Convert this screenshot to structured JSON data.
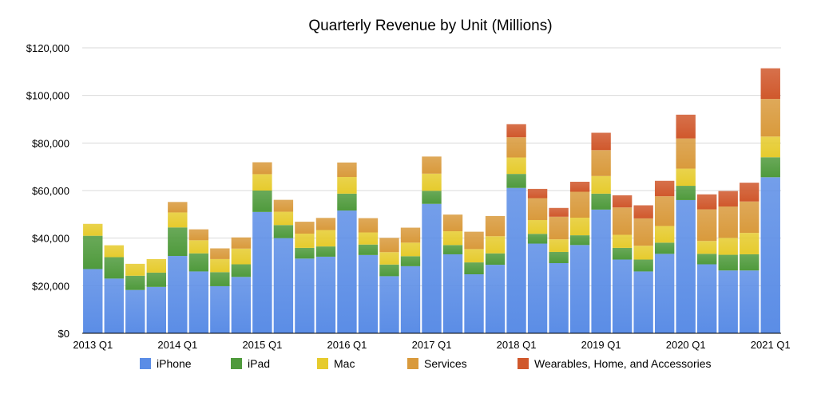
{
  "chart_data": {
    "type": "bar",
    "stacked": true,
    "title": "Quarterly Revenue by Unit (Millions)",
    "xlabel": "",
    "ylabel": "",
    "ylim": [
      0,
      120000
    ],
    "y_ticks": [
      "$0",
      "$20,000",
      "$40,000",
      "$60,000",
      "$80,000",
      "$100,000",
      "$120,000"
    ],
    "grid": true,
    "legend_position": "bottom",
    "categories": [
      "2013 Q1",
      "2013 Q2",
      "2013 Q3",
      "2013 Q4",
      "2014 Q1",
      "2014 Q2",
      "2014 Q3",
      "2014 Q4",
      "2015 Q1",
      "2015 Q2",
      "2015 Q3",
      "2015 Q4",
      "2016 Q1",
      "2016 Q2",
      "2016 Q3",
      "2016 Q4",
      "2017 Q1",
      "2017 Q2",
      "2017 Q3",
      "2017 Q4",
      "2018 Q1",
      "2018 Q2",
      "2018 Q3",
      "2018 Q4",
      "2019 Q1",
      "2019 Q2",
      "2019 Q3",
      "2019 Q4",
      "2020 Q1",
      "2020 Q2",
      "2020 Q3",
      "2020 Q4",
      "2021 Q1"
    ],
    "x_tick_labels": [
      "2013 Q1",
      "",
      "",
      "",
      "2014 Q1",
      "",
      "",
      "",
      "2015 Q1",
      "",
      "",
      "",
      "2016 Q1",
      "",
      "",
      "",
      "2017 Q1",
      "",
      "",
      "",
      "2018 Q1",
      "",
      "",
      "",
      "2019 Q1",
      "",
      "",
      "",
      "2020 Q1",
      "",
      "",
      "",
      "2021 Q1"
    ],
    "series": [
      {
        "name": "iPhone",
        "color": "#5b8de6",
        "values": [
          27000,
          23000,
          18200,
          19500,
          32500,
          26000,
          19800,
          23700,
          51000,
          40000,
          31400,
          32200,
          51600,
          32900,
          24000,
          28200,
          54400,
          33200,
          24800,
          28800,
          61100,
          37700,
          29500,
          37100,
          52000,
          31000,
          26000,
          33400,
          56000,
          29000,
          26400,
          26400,
          65600
        ]
      },
      {
        "name": "iPad",
        "color": "#4f9a3c",
        "values": [
          14000,
          9000,
          6000,
          6000,
          12000,
          7600,
          5900,
          5300,
          9000,
          5500,
          4500,
          4300,
          7100,
          4400,
          4900,
          4200,
          5500,
          3900,
          5000,
          4800,
          5900,
          4100,
          4700,
          4100,
          6700,
          4900,
          5000,
          4700,
          6000,
          4400,
          6600,
          6800,
          8400
        ]
      },
      {
        "name": "Mac",
        "color": "#e6cb2d",
        "values": [
          5000,
          5000,
          5000,
          5700,
          6300,
          5500,
          5500,
          6600,
          6900,
          5600,
          6000,
          6900,
          7000,
          5100,
          5200,
          5700,
          7200,
          5800,
          5600,
          7200,
          6900,
          5800,
          5300,
          7400,
          7400,
          5500,
          5800,
          7000,
          7200,
          5400,
          7100,
          9000,
          8700
        ]
      },
      {
        "name": "Services",
        "color": "#d99a3c",
        "values": [
          0,
          0,
          0,
          0,
          4400,
          4600,
          4500,
          4700,
          5000,
          5000,
          5000,
          5100,
          6100,
          6000,
          6000,
          6300,
          7200,
          7000,
          7300,
          8500,
          8500,
          9200,
          9500,
          10900,
          10900,
          11500,
          11500,
          12500,
          12700,
          13300,
          13200,
          13200,
          15800
        ]
      },
      {
        "name": "Wearables, Home, and Accessories",
        "color": "#d0582c",
        "values": [
          0,
          0,
          0,
          0,
          0,
          0,
          0,
          0,
          0,
          0,
          0,
          0,
          0,
          0,
          0,
          0,
          0,
          0,
          0,
          0,
          5500,
          3900,
          3700,
          4200,
          7300,
          5100,
          5500,
          6500,
          10000,
          6300,
          6500,
          7900,
          12900
        ]
      }
    ]
  }
}
